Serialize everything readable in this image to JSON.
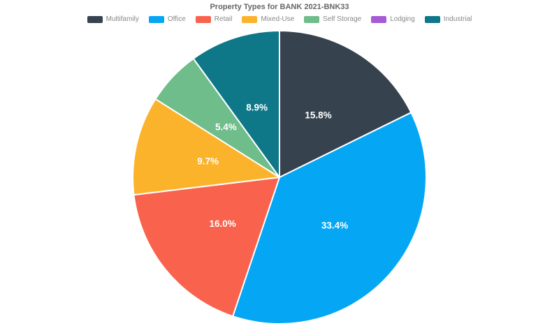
{
  "chart_data": {
    "type": "pie",
    "title": "Property Types for BANK 2021-BNK33",
    "legend_position": "top",
    "start_angle_deg": 0,
    "direction": "clockwise",
    "displayed_slice_labels": [
      "15.8%",
      "33.4%",
      "16.0%",
      "9.7%",
      "5.4%",
      "8.9%"
    ],
    "series": [
      {
        "name": "Multifamily",
        "value": 15.8,
        "color": "#37424f"
      },
      {
        "name": "Office",
        "value": 33.4,
        "color": "#05a7f5"
      },
      {
        "name": "Retail",
        "value": 16.0,
        "color": "#f9624d"
      },
      {
        "name": "Mixed-Use",
        "value": 9.7,
        "color": "#fcb32c"
      },
      {
        "name": "Self Storage",
        "value": 5.4,
        "color": "#6fbd8b"
      },
      {
        "name": "Lodging",
        "value": 0.0,
        "color": "#a55bd5"
      },
      {
        "name": "Industrial",
        "value": 8.9,
        "color": "#0e7889"
      }
    ]
  }
}
